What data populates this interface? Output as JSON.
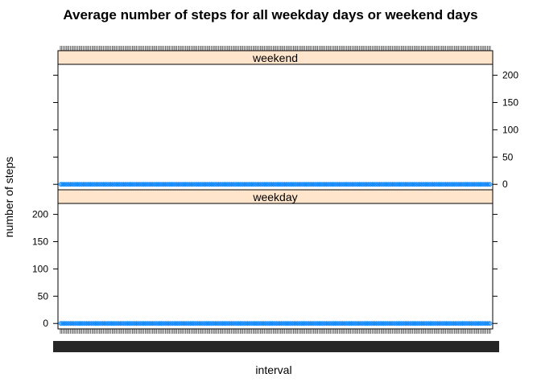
{
  "chart_data": {
    "type": "scatter",
    "title": "Average number of steps for all weekday days or weekend days",
    "xlabel": "interval",
    "ylabel": "number of steps",
    "x_axis": "categorical interval index (288 five-minute intervals, tick labels overplotted)",
    "ylim": [
      -10,
      220
    ],
    "y_ticks": [
      0,
      50,
      100,
      150,
      200
    ],
    "marker": "open-diamond",
    "point_color": "#0080ff",
    "strip_color": "#ffe5cc",
    "panels": [
      {
        "name": "weekend",
        "values": [
          0,
          0,
          0,
          0,
          0,
          0,
          0,
          0,
          0,
          0,
          0,
          0,
          0,
          0,
          0,
          0,
          0,
          0,
          0,
          0,
          0,
          0,
          0,
          0,
          0,
          0,
          0,
          0,
          0,
          0,
          0,
          0,
          0,
          0,
          0,
          0,
          0,
          0,
          0,
          0,
          0,
          0,
          0,
          0,
          0,
          0,
          0,
          0,
          0,
          0,
          0,
          0,
          0,
          0,
          0,
          0,
          0,
          0,
          0,
          0,
          0,
          0,
          0,
          0,
          0,
          0,
          0,
          0,
          0,
          0,
          0,
          0,
          0,
          0,
          0,
          0,
          0,
          0,
          0,
          0,
          0,
          0,
          0,
          0,
          0,
          0,
          0,
          0,
          0,
          0,
          0,
          0,
          0,
          0,
          0,
          0,
          0,
          0,
          0,
          0,
          0,
          0,
          0,
          0,
          0,
          0,
          0,
          0,
          0,
          0,
          0,
          0,
          0,
          0,
          0,
          0,
          0,
          0,
          0,
          0,
          0,
          0,
          0,
          0,
          0,
          0,
          0,
          0,
          0,
          0,
          0,
          0,
          0,
          0,
          0,
          0,
          0,
          0,
          0,
          0,
          0,
          0,
          0,
          0,
          0,
          0,
          0,
          0,
          0,
          0,
          0,
          0,
          0,
          0,
          0,
          0,
          0,
          0,
          0,
          0,
          0,
          0,
          0,
          0,
          0,
          0,
          0,
          0,
          0,
          0,
          0,
          0,
          0,
          0,
          0,
          0,
          0,
          0,
          0,
          0,
          0,
          0,
          0,
          0,
          0,
          0,
          0,
          0,
          0,
          0,
          0,
          0,
          0,
          0,
          0,
          0,
          0,
          0,
          0,
          0,
          0,
          0,
          0,
          0,
          0,
          0,
          0,
          0,
          0,
          0,
          0,
          0,
          0,
          0,
          0,
          0,
          0,
          0,
          0,
          0,
          0,
          0,
          0,
          0,
          0,
          0,
          0,
          0,
          0,
          0,
          0,
          0,
          0,
          0,
          0,
          0,
          0,
          0,
          0,
          0,
          0,
          0,
          0,
          0,
          0,
          0,
          0,
          0,
          0,
          0,
          0,
          0,
          0,
          0,
          0,
          0,
          0,
          0,
          0,
          0,
          0,
          0,
          0,
          0,
          0,
          0,
          0,
          0,
          0,
          0,
          0,
          0,
          0,
          0,
          0,
          0,
          0,
          0,
          0,
          0,
          0,
          0,
          0,
          0,
          0,
          0,
          0,
          0,
          0,
          0,
          0,
          0,
          0,
          0,
          0,
          0,
          0,
          0,
          0,
          0
        ]
      },
      {
        "name": "weekday",
        "values": [
          0,
          0,
          0,
          0,
          0,
          0,
          0,
          0,
          0,
          0,
          0,
          0,
          0,
          0,
          0,
          0,
          0,
          0,
          0,
          0,
          0,
          0,
          0,
          0,
          0,
          0,
          0,
          0,
          0,
          0,
          0,
          0,
          0,
          0,
          0,
          0,
          0,
          0,
          0,
          0,
          0,
          0,
          0,
          0,
          0,
          0,
          0,
          0,
          0,
          0,
          0,
          0,
          0,
          0,
          0,
          0,
          0,
          0,
          0,
          0,
          0,
          0,
          0,
          0,
          0,
          0,
          0,
          0,
          0,
          0,
          0,
          0,
          0,
          0,
          0,
          0,
          0,
          0,
          0,
          0,
          0,
          0,
          0,
          0,
          0,
          0,
          0,
          0,
          0,
          0,
          0,
          0,
          0,
          0,
          0,
          0,
          0,
          0,
          0,
          0,
          0,
          0,
          0,
          0,
          0,
          0,
          0,
          0,
          0,
          0,
          0,
          0,
          0,
          0,
          0,
          0,
          0,
          0,
          0,
          0,
          0,
          0,
          0,
          0,
          0,
          0,
          0,
          0,
          0,
          0,
          0,
          0,
          0,
          0,
          0,
          0,
          0,
          0,
          0,
          0,
          0,
          0,
          0,
          0,
          0,
          0,
          0,
          0,
          0,
          0,
          0,
          0,
          0,
          0,
          0,
          0,
          0,
          0,
          0,
          0,
          0,
          0,
          0,
          0,
          0,
          0,
          0,
          0,
          0,
          0,
          0,
          0,
          0,
          0,
          0,
          0,
          0,
          0,
          0,
          0,
          0,
          0,
          0,
          0,
          0,
          0,
          0,
          0,
          0,
          0,
          0,
          0,
          0,
          0,
          0,
          0,
          0,
          0,
          0,
          0,
          0,
          0,
          0,
          0,
          0,
          0,
          0,
          0,
          0,
          0,
          0,
          0,
          0,
          0,
          0,
          0,
          0,
          0,
          0,
          0,
          0,
          0,
          0,
          0,
          0,
          0,
          0,
          0,
          0,
          0,
          0,
          0,
          0,
          0,
          0,
          0,
          0,
          0,
          0,
          0,
          0,
          0,
          0,
          0,
          0,
          0,
          0,
          0,
          0,
          0,
          0,
          0,
          0,
          0,
          0,
          0,
          0,
          0,
          0,
          0,
          0,
          0,
          0,
          0,
          0,
          0,
          0,
          0,
          0,
          0,
          0,
          0,
          0,
          0,
          0,
          0,
          0,
          0,
          0,
          0,
          0,
          0,
          0,
          0,
          0,
          0,
          0,
          0,
          0,
          0,
          0,
          0,
          0,
          0,
          0
        ]
      }
    ]
  }
}
